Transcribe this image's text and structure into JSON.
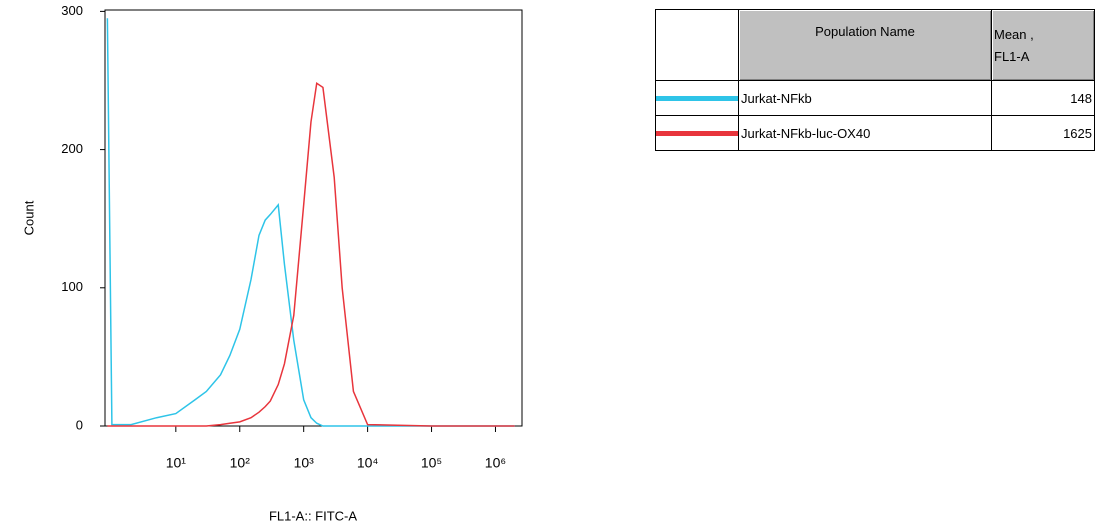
{
  "chart_data": {
    "type": "line",
    "ylabel": "Count",
    "xlabel": "FL1-A:: FITC-A",
    "xscale": "log",
    "x": [
      0.85,
      1,
      2,
      5,
      10,
      20,
      30,
      50,
      70,
      100,
      150,
      200,
      250,
      300,
      400,
      500,
      700,
      1000,
      1300,
      1600,
      2000,
      3000,
      4000,
      6000,
      10000,
      100000,
      1000000,
      2000000
    ],
    "series": [
      {
        "name": "Jurkat-NFkb",
        "color": "#2ec4e8",
        "values": [
          295,
          1,
          1,
          6,
          9,
          19,
          25,
          37,
          51,
          70,
          106,
          138,
          149,
          153,
          160,
          117,
          62,
          19,
          6,
          2,
          0,
          0,
          0,
          0,
          0,
          0,
          0,
          0
        ]
      },
      {
        "name": "Jurkat-NFkb-luc-OX40",
        "color": "#e8353c",
        "values": [
          0,
          0,
          0,
          0,
          0,
          0,
          0,
          1,
          2,
          3,
          6,
          10,
          14,
          18,
          30,
          45,
          80,
          160,
          220,
          248,
          245,
          180,
          100,
          25,
          1,
          0,
          0,
          0
        ]
      }
    ],
    "xlim": [
      0.78,
      2600000
    ],
    "ylim": [
      0,
      301
    ],
    "xticks": [
      {
        "value": 10,
        "label": "10¹"
      },
      {
        "value": 100,
        "label": "10²"
      },
      {
        "value": 1000,
        "label": "10³"
      },
      {
        "value": 10000,
        "label": "10⁴"
      },
      {
        "value": 100000,
        "label": "10⁵"
      },
      {
        "value": 1000000,
        "label": "10⁶"
      }
    ],
    "yticks": [
      0,
      100,
      200,
      300
    ],
    "stats_table": {
      "columns": [
        "Population Name",
        "Mean , FL1-A"
      ],
      "means": [
        148,
        1625
      ]
    }
  }
}
